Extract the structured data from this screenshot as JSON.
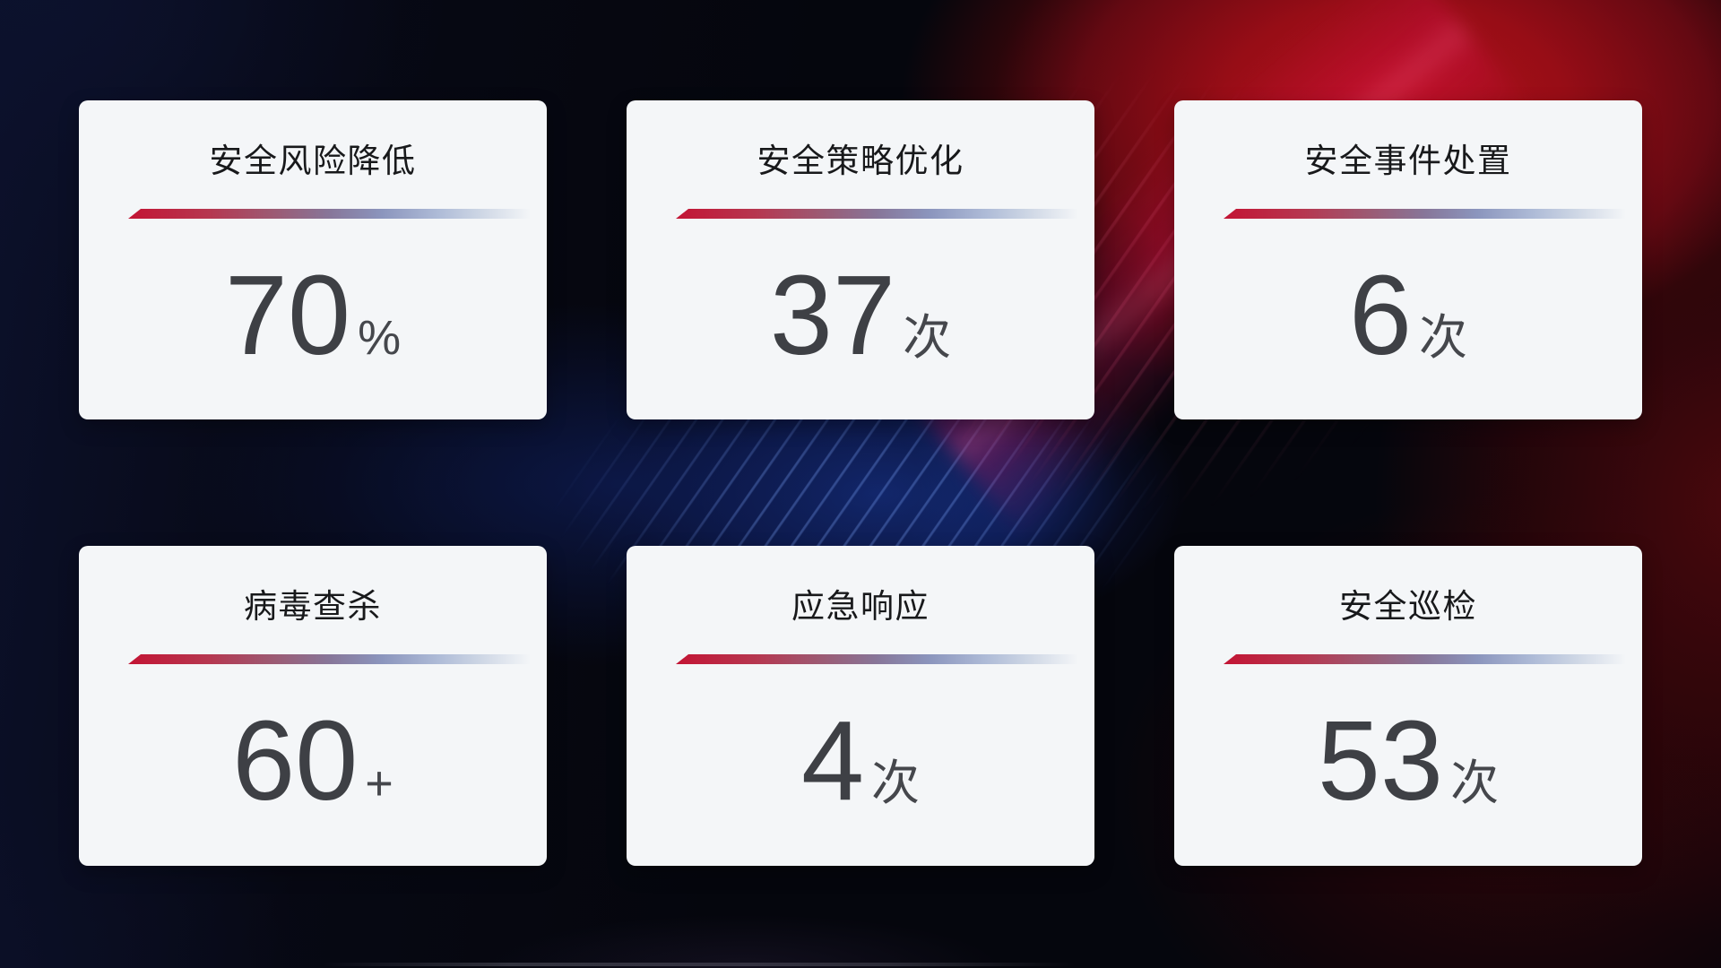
{
  "dashboard": {
    "cards": [
      {
        "title": "安全风险降低",
        "value": "70",
        "unit": "%"
      },
      {
        "title": "安全策略优化",
        "value": "37",
        "unit": "次"
      },
      {
        "title": "安全事件处置",
        "value": "6",
        "unit": "次"
      },
      {
        "title": "病毒查杀",
        "value": "60",
        "unit": "+"
      },
      {
        "title": "应急响应",
        "value": "4",
        "unit": "次"
      },
      {
        "title": "安全巡检",
        "value": "53",
        "unit": "次"
      }
    ]
  },
  "colors": {
    "card_background": "#f4f6f8",
    "card_title_text": "#18191b",
    "card_value_text": "#3e4045",
    "divider_gradient_start": "#c31434",
    "divider_gradient_mid": "#8b95bd",
    "divider_gradient_end": "#ccd5e4",
    "background_base": "#05060d",
    "background_navy": "#131c42",
    "background_blue_glow": "#1b3ea8",
    "background_red_glow": "#a00d18",
    "background_magenta_beam": "#e21054"
  }
}
